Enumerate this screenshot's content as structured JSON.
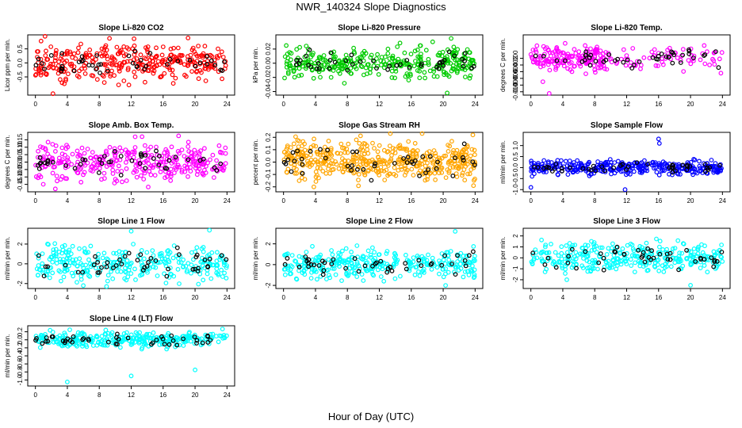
{
  "figure": {
    "title": "NWR_140324  Slope Diagnostics",
    "xlabel": "Hour of Day (UTC)"
  },
  "chart_data": [
    {
      "type": "scatter",
      "title": "Slope Li-820 CO2",
      "ylabel": "Licor ppm per min.",
      "xlim": [
        0,
        24
      ],
      "ylim": [
        -1.15,
        1.0
      ],
      "xticks": [
        0,
        4,
        8,
        12,
        16,
        20,
        24
      ],
      "yticks": [
        -0.5,
        0.0,
        0.5
      ],
      "ytick_labels": [
        "-0.5",
        "0.0",
        "0.5"
      ],
      "color": "#ff0000",
      "spread": 0.32,
      "n_points": 330,
      "outliers": [
        [
          1.2,
          0.95
        ],
        [
          2.2,
          -1.1
        ]
      ]
    },
    {
      "type": "scatter",
      "title": "Slope Li-820 Pressure",
      "ylabel": "kPa per min.",
      "xlim": [
        0,
        24
      ],
      "ylim": [
        -0.045,
        0.04
      ],
      "xticks": [
        0,
        4,
        8,
        12,
        16,
        20,
        24
      ],
      "yticks": [
        -0.04,
        -0.02,
        0.0,
        0.02
      ],
      "ytick_labels": [
        "-0.04",
        "-0.02",
        "0.00",
        "0.02"
      ],
      "color": "#00cc00",
      "spread": 0.01,
      "n_points": 330,
      "outliers": [
        [
          21.0,
          0.035
        ],
        [
          20.5,
          -0.042
        ]
      ]
    },
    {
      "type": "scatter",
      "title": "Slope Li-820 Temp.",
      "ylabel": "degrees C per min.",
      "xlim": [
        0,
        24
      ],
      "ylim": [
        -0.011,
        0.007
      ],
      "xticks": [
        0,
        4,
        8,
        12,
        16,
        20,
        24
      ],
      "yticks": [
        -0.01,
        -0.008,
        -0.006,
        -0.004,
        -0.002,
        0.0
      ],
      "ytick_labels": [
        "-0.010",
        "-0.008",
        "-0.006",
        "-0.004",
        "-0.002",
        "0.000"
      ],
      "color": "#ff00ff",
      "spread": 0.0018,
      "n_points": 230,
      "outliers": [
        [
          2.3,
          -0.0105
        ],
        [
          1.5,
          -0.007
        ]
      ]
    },
    {
      "type": "scatter",
      "title": "Slope Amb. Box Temp.",
      "ylabel": "degrees C per min.",
      "xlim": [
        0,
        24
      ],
      "ylim": [
        -0.2,
        0.2
      ],
      "xticks": [
        0,
        4,
        8,
        12,
        16,
        20,
        24
      ],
      "yticks": [
        -0.15,
        -0.1,
        -0.05,
        0.0,
        0.05,
        0.1,
        0.15
      ],
      "ytick_labels": [
        "-0.15",
        "-0.10",
        "-0.05",
        "0.00",
        "0.05",
        "0.10",
        "0.15"
      ],
      "color": "#ff00ff",
      "spread": 0.06,
      "n_points": 330,
      "outliers": [
        [
          12.5,
          0.17
        ],
        [
          2.5,
          -0.18
        ]
      ]
    },
    {
      "type": "scatter",
      "title": "Slope Gas Stream RH",
      "ylabel": "percent per min.",
      "xlim": [
        0,
        24
      ],
      "ylim": [
        -0.24,
        0.24
      ],
      "xticks": [
        0,
        4,
        8,
        12,
        16,
        20,
        24
      ],
      "yticks": [
        -0.2,
        -0.1,
        0.0,
        0.1,
        0.2
      ],
      "ytick_labels": [
        "-0.2",
        "-0.1",
        "0.0",
        "0.1",
        "0.2"
      ],
      "color": "#ffa500",
      "spread": 0.08,
      "n_points": 450,
      "outliers": [
        [
          3.8,
          -0.2
        ],
        [
          23.8,
          -0.19
        ]
      ]
    },
    {
      "type": "scatter",
      "title": "Slope Sample Flow",
      "ylabel": "ml/min per min.",
      "xlim": [
        0,
        24
      ],
      "ylim": [
        -1.1,
        1.6
      ],
      "xticks": [
        0,
        4,
        8,
        12,
        16,
        20,
        24
      ],
      "yticks": [
        -1.0,
        -0.5,
        0.0,
        0.5,
        1.0
      ],
      "ytick_labels": [
        "-1.0",
        "-0.5",
        "0.0",
        "0.5",
        "1.0"
      ],
      "color": "#0000ff",
      "spread": 0.15,
      "n_points": 330,
      "outliers": [
        [
          16.0,
          1.3
        ],
        [
          16.1,
          1.1
        ],
        [
          0.0,
          -0.9
        ],
        [
          11.8,
          -1.0
        ]
      ]
    },
    {
      "type": "scatter",
      "title": "Slope Line 1 Flow",
      "ylabel": "ml/min per min.",
      "xlim": [
        0,
        24
      ],
      "ylim": [
        -2.5,
        3.6
      ],
      "xticks": [
        0,
        4,
        8,
        12,
        16,
        20,
        24
      ],
      "yticks": [
        -2,
        0,
        2
      ],
      "ytick_labels": [
        "-2",
        "0",
        "2"
      ],
      "color": "#00ffff",
      "spread": 0.9,
      "n_points": 300,
      "outliers": [
        [
          12.0,
          3.3
        ],
        [
          21.8,
          3.4
        ],
        [
          6.0,
          -2.2
        ]
      ]
    },
    {
      "type": "scatter",
      "title": "Slope Line 2 Flow",
      "ylabel": "ml/min per min.",
      "xlim": [
        0,
        24
      ],
      "ylim": [
        -2.3,
        3.5
      ],
      "xticks": [
        0,
        4,
        8,
        12,
        16,
        20,
        24
      ],
      "yticks": [
        -2,
        0,
        2
      ],
      "ytick_labels": [
        "-2",
        "0",
        "2"
      ],
      "color": "#00ffff",
      "spread": 0.7,
      "n_points": 320,
      "outliers": [
        [
          21.5,
          3.2
        ],
        [
          20.3,
          -2.0
        ]
      ]
    },
    {
      "type": "scatter",
      "title": "Slope Line 3 Flow",
      "ylabel": "ml/min per min.",
      "xlim": [
        0,
        24
      ],
      "ylim": [
        -2.8,
        2.7
      ],
      "xticks": [
        0,
        4,
        8,
        12,
        16,
        20,
        24
      ],
      "yticks": [
        -2,
        -1,
        0,
        1,
        2
      ],
      "ytick_labels": [
        "-2",
        "-1",
        "0",
        "1",
        "2"
      ],
      "color": "#00ffff",
      "spread": 0.7,
      "n_points": 320,
      "outliers": [
        [
          4.5,
          -2.0
        ],
        [
          20.0,
          -2.5
        ]
      ]
    },
    {
      "type": "scatter",
      "title": "Slope Line 4 (LT) Flow",
      "ylabel": "ml/min per min.",
      "xlim": [
        0,
        24
      ],
      "ylim": [
        -1.15,
        0.35
      ],
      "xticks": [
        0,
        4,
        8,
        12,
        16,
        20,
        24
      ],
      "yticks": [
        -1.0,
        -0.8,
        -0.6,
        -0.4,
        -0.2,
        0.0,
        0.2
      ],
      "ytick_labels": [
        "-1.0",
        "-0.8",
        "-0.6",
        "-0.4",
        "-0.2",
        "0.0",
        "0.2"
      ],
      "color": "#00ffff",
      "spread": 0.09,
      "n_points": 300,
      "outliers": [
        [
          4.0,
          -1.05
        ],
        [
          12.0,
          -0.9
        ],
        [
          20.0,
          -0.75
        ],
        [
          4.3,
          0.25
        ]
      ]
    }
  ]
}
